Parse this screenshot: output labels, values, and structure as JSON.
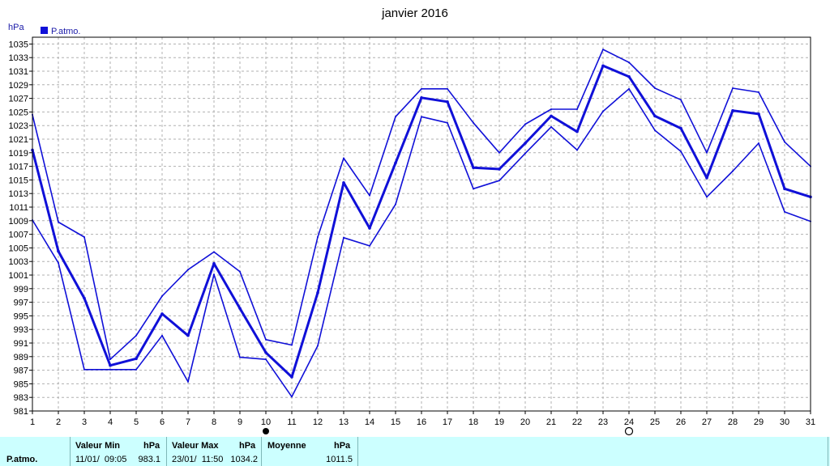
{
  "chart_data": {
    "type": "line",
    "title": "janvier 2016",
    "ylabel": "hPa",
    "legend": "P.atmo.",
    "legend_position": "top-left",
    "grid": true,
    "ylim": [
      981,
      1036
    ],
    "yticks": [
      981,
      983,
      985,
      987,
      989,
      991,
      993,
      995,
      997,
      999,
      1001,
      1003,
      1005,
      1007,
      1009,
      1011,
      1013,
      1015,
      1017,
      1019,
      1021,
      1023,
      1025,
      1027,
      1029,
      1031,
      1033,
      1035
    ],
    "x": [
      1,
      2,
      3,
      4,
      5,
      6,
      7,
      8,
      9,
      10,
      11,
      12,
      13,
      14,
      15,
      16,
      17,
      18,
      19,
      20,
      21,
      22,
      23,
      24,
      25,
      26,
      27,
      28,
      29,
      30,
      31
    ],
    "series": [
      {
        "role": "max",
        "values": [
          1024.6,
          1008.8,
          1006.6,
          988.6,
          992.1,
          997.9,
          1001.8,
          1004.4,
          1001.5,
          991.5,
          990.7,
          1006.6,
          1018.2,
          1012.7,
          1024.3,
          1028.4,
          1028.4,
          1023.4,
          1019.0,
          1023.2,
          1025.4,
          1025.4,
          1034.2,
          1032.3,
          1028.5,
          1026.8,
          1019.0,
          1028.5,
          1027.9,
          1020.6,
          1017.0
        ]
      },
      {
        "role": "mean",
        "values": [
          1019.4,
          1004.5,
          997.6,
          987.7,
          988.7,
          995.3,
          992.1,
          1002.7,
          996.1,
          989.6,
          986.0,
          998.4,
          1014.6,
          1007.9,
          1017.5,
          1027.1,
          1026.5,
          1016.8,
          1016.6,
          1020.4,
          1024.4,
          1022.1,
          1031.8,
          1030.2,
          1024.4,
          1022.6,
          1015.3,
          1025.2,
          1024.7,
          1013.7,
          1012.5
        ]
      },
      {
        "role": "min",
        "values": [
          1009.1,
          1002.8,
          987.1,
          987.1,
          987.1,
          992.1,
          985.3,
          1001.1,
          988.9,
          988.6,
          983.1,
          990.6,
          1006.5,
          1005.3,
          1011.4,
          1024.3,
          1023.4,
          1013.7,
          1014.9,
          1018.9,
          1022.8,
          1019.4,
          1025.1,
          1028.4,
          1022.3,
          1019.2,
          1012.5,
          1016.3,
          1020.4,
          1010.3,
          1008.9
        ]
      }
    ]
  },
  "markers": {
    "new_moon_day": 10,
    "full_moon_day": 24
  },
  "stats": {
    "row_label": "P.atmo.",
    "min_header": "Valeur Min",
    "min_unit": "hPa",
    "min_date": "11/01/  09:05",
    "min_value": "983.1",
    "max_header": "Valeur Max",
    "max_unit": "hPa",
    "max_date": "23/01/  11:50",
    "max_value": "1034.2",
    "mean_header": "Moyenne",
    "mean_unit": "hPa",
    "mean_value": "1011.5"
  },
  "colors": {
    "series": "#1010d8",
    "grid": "#b0b0b0",
    "stats_bg": "#ccffff"
  }
}
